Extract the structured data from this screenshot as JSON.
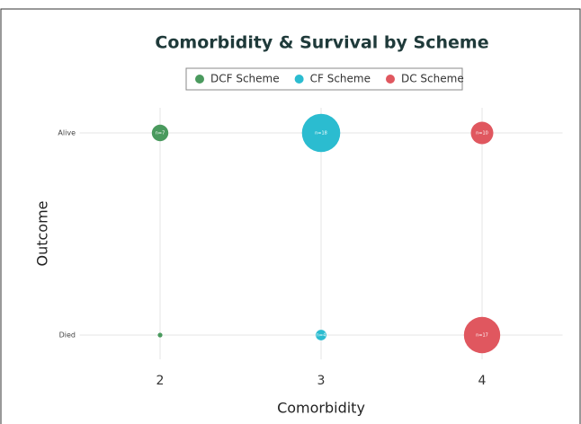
{
  "chart_data": {
    "type": "scatter",
    "title": "Comorbidity & Survival by Scheme",
    "xlabel": "Comorbidity",
    "ylabel": "Outcome",
    "xlim": [
      1.5,
      4.5
    ],
    "xticks": [
      2,
      3,
      4
    ],
    "ycategories": [
      "Died",
      "Alive"
    ],
    "grid": true,
    "legend": "top",
    "series": [
      {
        "name": "DCF Scheme",
        "color": "#4a9a5e",
        "x": [
          2,
          2
        ],
        "y": [
          "Alive",
          "Died"
        ],
        "sizes": [
          7,
          1
        ],
        "value_labels": [
          "n=7",
          null
        ]
      },
      {
        "name": "CF Scheme",
        "color": "#2bbcd0",
        "x": [
          3,
          3
        ],
        "y": [
          "Alive",
          "Died"
        ],
        "sizes": [
          18,
          4
        ],
        "value_labels": [
          "n=18",
          "n=4"
        ]
      },
      {
        "name": "DC Scheme",
        "color": "#e0575f",
        "x": [
          4,
          4
        ],
        "y": [
          "Alive",
          "Died"
        ],
        "sizes": [
          10,
          17
        ],
        "value_labels": [
          "n=10",
          "n=17"
        ]
      }
    ]
  }
}
